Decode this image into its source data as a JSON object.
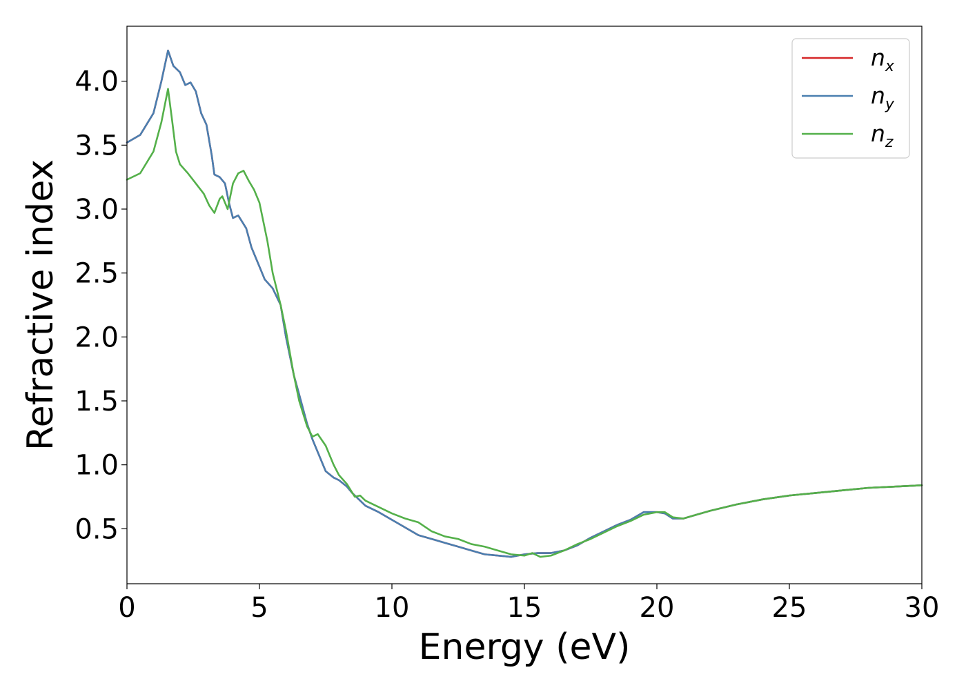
{
  "chart_data": {
    "type": "line",
    "title": "",
    "xlabel": "Energy (eV)",
    "ylabel": "Refractive index",
    "xlim": [
      0,
      30
    ],
    "ylim": [
      0.07,
      4.43
    ],
    "x_ticks": [
      0,
      5,
      10,
      15,
      20,
      25,
      30
    ],
    "x_tick_labels": [
      "0",
      "5",
      "10",
      "15",
      "20",
      "25",
      "30"
    ],
    "y_ticks": [
      0.5,
      1.0,
      1.5,
      2.0,
      2.5,
      3.0,
      3.5,
      4.0
    ],
    "y_tick_labels": [
      "0.5",
      "1.0",
      "1.5",
      "2.0",
      "2.5",
      "3.0",
      "3.5",
      "4.0"
    ],
    "grid": false,
    "legend_position": "top-right",
    "series": [
      {
        "name": "n",
        "subscript": "x",
        "color": "#d62728",
        "points": [
          [
            0,
            3.52
          ],
          [
            0.5,
            3.58
          ],
          [
            1.0,
            3.75
          ],
          [
            1.3,
            4.0
          ],
          [
            1.55,
            4.24
          ],
          [
            1.75,
            4.12
          ],
          [
            2.0,
            4.07
          ],
          [
            2.2,
            3.97
          ],
          [
            2.4,
            3.99
          ],
          [
            2.6,
            3.92
          ],
          [
            2.8,
            3.75
          ],
          [
            3.0,
            3.66
          ],
          [
            3.2,
            3.42
          ],
          [
            3.3,
            3.27
          ],
          [
            3.5,
            3.25
          ],
          [
            3.7,
            3.2
          ],
          [
            3.85,
            3.05
          ],
          [
            4.0,
            2.93
          ],
          [
            4.2,
            2.95
          ],
          [
            4.5,
            2.85
          ],
          [
            4.7,
            2.7
          ],
          [
            5.0,
            2.55
          ],
          [
            5.2,
            2.45
          ],
          [
            5.5,
            2.38
          ],
          [
            5.8,
            2.25
          ],
          [
            6.0,
            2.0
          ],
          [
            6.3,
            1.7
          ],
          [
            6.5,
            1.55
          ],
          [
            6.8,
            1.32
          ],
          [
            7.0,
            1.2
          ],
          [
            7.3,
            1.05
          ],
          [
            7.5,
            0.95
          ],
          [
            7.8,
            0.9
          ],
          [
            8.0,
            0.88
          ],
          [
            8.3,
            0.83
          ],
          [
            8.5,
            0.78
          ],
          [
            9.0,
            0.68
          ],
          [
            9.5,
            0.63
          ],
          [
            10.0,
            0.57
          ],
          [
            10.5,
            0.51
          ],
          [
            11.0,
            0.45
          ],
          [
            11.5,
            0.42
          ],
          [
            12.0,
            0.39
          ],
          [
            12.5,
            0.36
          ],
          [
            13.0,
            0.33
          ],
          [
            13.5,
            0.3
          ],
          [
            14.0,
            0.29
          ],
          [
            14.5,
            0.28
          ],
          [
            15.0,
            0.3
          ],
          [
            15.5,
            0.31
          ],
          [
            16.0,
            0.31
          ],
          [
            16.5,
            0.33
          ],
          [
            17.0,
            0.37
          ],
          [
            17.5,
            0.43
          ],
          [
            18.0,
            0.48
          ],
          [
            18.5,
            0.53
          ],
          [
            19.0,
            0.57
          ],
          [
            19.5,
            0.63
          ],
          [
            20.0,
            0.63
          ],
          [
            20.3,
            0.62
          ],
          [
            20.6,
            0.58
          ],
          [
            21.0,
            0.58
          ],
          [
            21.5,
            0.61
          ],
          [
            22.0,
            0.64
          ],
          [
            23.0,
            0.69
          ],
          [
            24.0,
            0.73
          ],
          [
            25.0,
            0.76
          ],
          [
            26.0,
            0.78
          ],
          [
            27.0,
            0.8
          ],
          [
            28.0,
            0.82
          ],
          [
            29.0,
            0.83
          ],
          [
            30.0,
            0.84
          ]
        ]
      },
      {
        "name": "n",
        "subscript": "y",
        "color": "#4a7fb0",
        "points": [
          [
            0,
            3.52
          ],
          [
            0.5,
            3.58
          ],
          [
            1.0,
            3.75
          ],
          [
            1.3,
            4.0
          ],
          [
            1.55,
            4.24
          ],
          [
            1.75,
            4.12
          ],
          [
            2.0,
            4.07
          ],
          [
            2.2,
            3.97
          ],
          [
            2.4,
            3.99
          ],
          [
            2.6,
            3.92
          ],
          [
            2.8,
            3.75
          ],
          [
            3.0,
            3.66
          ],
          [
            3.2,
            3.42
          ],
          [
            3.3,
            3.27
          ],
          [
            3.5,
            3.25
          ],
          [
            3.7,
            3.2
          ],
          [
            3.85,
            3.05
          ],
          [
            4.0,
            2.93
          ],
          [
            4.2,
            2.95
          ],
          [
            4.5,
            2.85
          ],
          [
            4.7,
            2.7
          ],
          [
            5.0,
            2.55
          ],
          [
            5.2,
            2.45
          ],
          [
            5.5,
            2.38
          ],
          [
            5.8,
            2.25
          ],
          [
            6.0,
            2.0
          ],
          [
            6.3,
            1.7
          ],
          [
            6.5,
            1.55
          ],
          [
            6.8,
            1.32
          ],
          [
            7.0,
            1.2
          ],
          [
            7.3,
            1.05
          ],
          [
            7.5,
            0.95
          ],
          [
            7.8,
            0.9
          ],
          [
            8.0,
            0.88
          ],
          [
            8.3,
            0.83
          ],
          [
            8.5,
            0.78
          ],
          [
            9.0,
            0.68
          ],
          [
            9.5,
            0.63
          ],
          [
            10.0,
            0.57
          ],
          [
            10.5,
            0.51
          ],
          [
            11.0,
            0.45
          ],
          [
            11.5,
            0.42
          ],
          [
            12.0,
            0.39
          ],
          [
            12.5,
            0.36
          ],
          [
            13.0,
            0.33
          ],
          [
            13.5,
            0.3
          ],
          [
            14.0,
            0.29
          ],
          [
            14.5,
            0.28
          ],
          [
            15.0,
            0.3
          ],
          [
            15.5,
            0.31
          ],
          [
            16.0,
            0.31
          ],
          [
            16.5,
            0.33
          ],
          [
            17.0,
            0.37
          ],
          [
            17.5,
            0.43
          ],
          [
            18.0,
            0.48
          ],
          [
            18.5,
            0.53
          ],
          [
            19.0,
            0.57
          ],
          [
            19.5,
            0.63
          ],
          [
            20.0,
            0.63
          ],
          [
            20.3,
            0.62
          ],
          [
            20.6,
            0.58
          ],
          [
            21.0,
            0.58
          ],
          [
            21.5,
            0.61
          ],
          [
            22.0,
            0.64
          ],
          [
            23.0,
            0.69
          ],
          [
            24.0,
            0.73
          ],
          [
            25.0,
            0.76
          ],
          [
            26.0,
            0.78
          ],
          [
            27.0,
            0.8
          ],
          [
            28.0,
            0.82
          ],
          [
            29.0,
            0.83
          ],
          [
            30.0,
            0.84
          ]
        ]
      },
      {
        "name": "n",
        "subscript": "z",
        "color": "#54b04a",
        "points": [
          [
            0,
            3.23
          ],
          [
            0.5,
            3.28
          ],
          [
            1.0,
            3.45
          ],
          [
            1.3,
            3.68
          ],
          [
            1.55,
            3.94
          ],
          [
            1.7,
            3.7
          ],
          [
            1.85,
            3.45
          ],
          [
            2.0,
            3.35
          ],
          [
            2.3,
            3.28
          ],
          [
            2.6,
            3.2
          ],
          [
            2.9,
            3.12
          ],
          [
            3.1,
            3.03
          ],
          [
            3.3,
            2.97
          ],
          [
            3.5,
            3.08
          ],
          [
            3.6,
            3.1
          ],
          [
            3.8,
            3.0
          ],
          [
            4.0,
            3.2
          ],
          [
            4.2,
            3.28
          ],
          [
            4.4,
            3.3
          ],
          [
            4.6,
            3.22
          ],
          [
            4.8,
            3.15
          ],
          [
            5.0,
            3.05
          ],
          [
            5.3,
            2.75
          ],
          [
            5.5,
            2.5
          ],
          [
            5.8,
            2.25
          ],
          [
            6.0,
            2.05
          ],
          [
            6.3,
            1.7
          ],
          [
            6.5,
            1.5
          ],
          [
            6.8,
            1.3
          ],
          [
            7.0,
            1.22
          ],
          [
            7.2,
            1.24
          ],
          [
            7.5,
            1.15
          ],
          [
            7.8,
            1.0
          ],
          [
            8.0,
            0.92
          ],
          [
            8.3,
            0.85
          ],
          [
            8.6,
            0.75
          ],
          [
            8.8,
            0.76
          ],
          [
            9.0,
            0.72
          ],
          [
            9.5,
            0.67
          ],
          [
            10.0,
            0.62
          ],
          [
            10.5,
            0.58
          ],
          [
            11.0,
            0.55
          ],
          [
            11.5,
            0.48
          ],
          [
            12.0,
            0.44
          ],
          [
            12.5,
            0.42
          ],
          [
            13.0,
            0.38
          ],
          [
            13.5,
            0.36
          ],
          [
            14.0,
            0.33
          ],
          [
            14.5,
            0.3
          ],
          [
            15.0,
            0.29
          ],
          [
            15.3,
            0.31
          ],
          [
            15.6,
            0.28
          ],
          [
            16.0,
            0.29
          ],
          [
            16.5,
            0.33
          ],
          [
            17.0,
            0.38
          ],
          [
            17.5,
            0.42
          ],
          [
            18.0,
            0.47
          ],
          [
            18.5,
            0.52
          ],
          [
            19.0,
            0.56
          ],
          [
            19.5,
            0.61
          ],
          [
            20.0,
            0.63
          ],
          [
            20.3,
            0.63
          ],
          [
            20.6,
            0.59
          ],
          [
            21.0,
            0.58
          ],
          [
            21.5,
            0.61
          ],
          [
            22.0,
            0.64
          ],
          [
            23.0,
            0.69
          ],
          [
            24.0,
            0.73
          ],
          [
            25.0,
            0.76
          ],
          [
            26.0,
            0.78
          ],
          [
            27.0,
            0.8
          ],
          [
            28.0,
            0.82
          ],
          [
            29.0,
            0.83
          ],
          [
            30.0,
            0.84
          ]
        ]
      }
    ]
  }
}
